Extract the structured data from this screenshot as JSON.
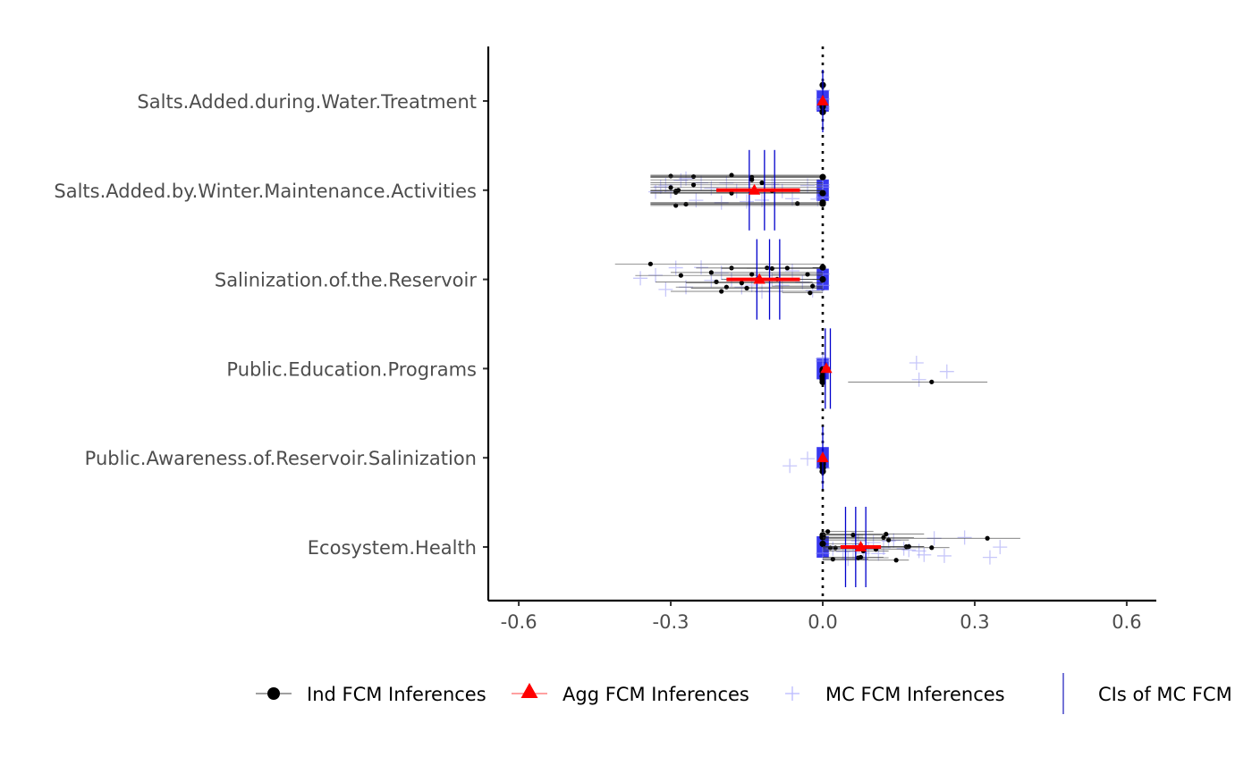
{
  "chart_data": {
    "type": "scatter",
    "title": "",
    "xlabel": "",
    "ylabel": "",
    "xlim": [
      -0.66,
      0.66
    ],
    "x_ticks": [
      -0.6,
      -0.3,
      0.0,
      0.3,
      0.6
    ],
    "x_tick_labels": [
      "-0.6",
      "-0.3",
      "0.0",
      "0.3",
      "0.6"
    ],
    "reference_line_x": 0.0,
    "grid": false,
    "legend_position": "bottom",
    "categories": [
      "Salts.Added.during.Water.Treatment",
      "Salts.Added.by.Winter.Maintenance.Activities",
      "Salinization.of.the.Reservoir",
      "Public.Education.Programs",
      "Public.Awareness.of.Reservoir.Salinization",
      "Ecosystem.Health"
    ],
    "legend": [
      {
        "label": "Ind FCM Inferences",
        "marker": "circle",
        "color": "#000000"
      },
      {
        "label": "Agg FCM Inferences",
        "marker": "triangle",
        "color": "#ff0000"
      },
      {
        "label": "MC FCM Inferences",
        "marker": "plus",
        "color": "#aaaaff"
      },
      {
        "label": "CIs of MC FCM",
        "marker": "vline",
        "color": "#2b2bbf"
      }
    ],
    "colors": {
      "ind": "#000000",
      "agg": "#ff0000",
      "mc": "#9a9af5",
      "ci": "#0000cc",
      "box": "#2323ee"
    },
    "series": [
      {
        "category": "Salts.Added.during.Water.Treatment",
        "ind": [
          [
            0.0,
            0.0,
            0.0
          ],
          [
            0.0,
            0.0,
            0.0
          ],
          [
            0.0,
            0.0,
            0.0
          ],
          [
            0.0,
            0.0,
            0.0
          ],
          [
            0.0,
            0.0,
            0.0
          ],
          [
            0.0,
            0.0,
            0.0
          ],
          [
            0.0,
            0.0,
            0.0
          ],
          [
            0.0,
            0.0,
            0.0
          ]
        ],
        "agg": {
          "value": 0.0,
          "low": -0.003,
          "high": 0.003
        },
        "mc": [
          0.0,
          0.0,
          0.0,
          0.0
        ],
        "ci": [
          0.0
        ],
        "box": [
          -0.012,
          0.012
        ]
      },
      {
        "category": "Salts.Added.by.Winter.Maintenance.Activities",
        "ind": [
          [
            -0.29,
            -0.34,
            0.0
          ],
          [
            -0.29,
            -0.34,
            0.0
          ],
          [
            -0.3,
            -0.34,
            0.0
          ],
          [
            -0.285,
            -0.34,
            0.0
          ],
          [
            -0.29,
            -0.34,
            0.0
          ],
          [
            -0.3,
            -0.34,
            0.0
          ],
          [
            -0.27,
            -0.34,
            0.0
          ],
          [
            -0.255,
            -0.34,
            0.0
          ],
          [
            -0.255,
            -0.34,
            0.0
          ],
          [
            -0.18,
            -0.34,
            0.0
          ],
          [
            -0.18,
            -0.34,
            0.0
          ],
          [
            -0.14,
            -0.34,
            0.0
          ],
          [
            -0.14,
            -0.34,
            0.0
          ],
          [
            -0.12,
            -0.34,
            0.0
          ],
          [
            -0.1,
            -0.34,
            0.0
          ],
          [
            -0.05,
            -0.34,
            0.0
          ],
          [
            -0.0,
            -0.34,
            0.0
          ],
          [
            -0.0,
            -0.34,
            0.0
          ],
          [
            -0.0,
            -0.34,
            0.0
          ],
          [
            -0.0,
            -0.34,
            0.0
          ]
        ],
        "agg": {
          "value": -0.135,
          "low": -0.21,
          "high": -0.045
        },
        "mc": [
          -0.33,
          -0.32,
          -0.31,
          -0.3,
          -0.28,
          -0.27,
          -0.25,
          -0.24,
          -0.22,
          -0.2,
          -0.19,
          -0.17,
          -0.15,
          -0.12,
          -0.1,
          -0.08,
          -0.06,
          -0.03,
          -0.01,
          0.0,
          0.0,
          0.0
        ],
        "ci": [
          -0.145,
          -0.115,
          -0.095
        ],
        "box": [
          -0.012,
          0.012
        ]
      },
      {
        "category": "Salinization.of.the.Reservoir",
        "ind": [
          [
            -0.34,
            -0.41,
            0.0
          ],
          [
            -0.28,
            -0.37,
            0.0
          ],
          [
            -0.22,
            -0.3,
            0.0
          ],
          [
            -0.21,
            -0.33,
            -0.02
          ],
          [
            -0.2,
            -0.3,
            0.0
          ],
          [
            -0.19,
            -0.29,
            0.0
          ],
          [
            -0.18,
            -0.25,
            0.0
          ],
          [
            -0.16,
            -0.27,
            0.0
          ],
          [
            -0.15,
            -0.26,
            0.0
          ],
          [
            -0.14,
            -0.22,
            0.0
          ],
          [
            -0.13,
            -0.2,
            0.0
          ],
          [
            -0.11,
            -0.2,
            0.0
          ],
          [
            -0.1,
            -0.2,
            0.0
          ],
          [
            -0.09,
            -0.18,
            0.0
          ],
          [
            -0.07,
            -0.15,
            0.0
          ],
          [
            -0.03,
            -0.1,
            0.0
          ],
          [
            -0.025,
            -0.08,
            0.0
          ],
          [
            -0.02,
            -0.1,
            0.0
          ],
          [
            0.0,
            -0.02,
            0.0
          ],
          [
            0.0,
            -0.02,
            0.0
          ]
        ],
        "agg": {
          "value": -0.125,
          "low": -0.19,
          "high": -0.045
        },
        "mc": [
          -0.36,
          -0.33,
          -0.31,
          -0.29,
          -0.27,
          -0.24,
          -0.22,
          -0.2,
          -0.18,
          -0.16,
          -0.14,
          -0.12,
          -0.1,
          -0.08,
          -0.06,
          -0.04,
          -0.02,
          0.0,
          0.0
        ],
        "ci": [
          -0.13,
          -0.105,
          -0.085
        ],
        "box": [
          -0.012,
          0.012
        ]
      },
      {
        "category": "Public.Education.Programs",
        "ind": [
          [
            0.0,
            0.0,
            0.0
          ],
          [
            0.0,
            0.0,
            0.0
          ],
          [
            0.0,
            0.0,
            0.0
          ],
          [
            0.0,
            0.0,
            0.0
          ],
          [
            0.0,
            0.0,
            0.0
          ],
          [
            0.0,
            0.0,
            0.0
          ],
          [
            0.215,
            0.05,
            0.325
          ]
        ],
        "agg": {
          "value": 0.007,
          "low": 0.0,
          "high": 0.014
        },
        "mc": [
          0.185,
          0.19,
          0.245,
          0.0,
          0.0
        ],
        "ci": [
          0.005,
          0.015
        ],
        "box": [
          -0.012,
          0.012
        ]
      },
      {
        "category": "Public.Awareness.of.Reservoir.Salinization",
        "ind": [
          [
            0.0,
            0.0,
            0.0
          ],
          [
            0.0,
            0.0,
            0.0
          ],
          [
            0.0,
            0.0,
            0.0
          ],
          [
            0.0,
            0.0,
            0.0
          ],
          [
            0.0,
            0.0,
            0.0
          ],
          [
            0.0,
            0.0,
            0.0
          ]
        ],
        "agg": {
          "value": 0.0,
          "low": -0.003,
          "high": 0.003
        },
        "mc": [
          -0.065,
          -0.03,
          0.0
        ],
        "ci": [
          0.0
        ],
        "box": [
          -0.012,
          0.012
        ]
      },
      {
        "category": "Ecosystem.Health",
        "ind": [
          [
            0.0,
            0.0,
            0.08
          ],
          [
            0.0,
            0.0,
            0.08
          ],
          [
            0.0,
            0.0,
            0.08
          ],
          [
            0.01,
            0.0,
            0.1
          ],
          [
            0.015,
            0.0,
            0.09
          ],
          [
            0.02,
            0.0,
            0.09
          ],
          [
            0.025,
            0.0,
            0.08
          ],
          [
            0.06,
            0.0,
            0.12
          ],
          [
            0.07,
            0.0,
            0.13
          ],
          [
            0.075,
            0.0,
            0.12
          ],
          [
            0.08,
            0.0,
            0.13
          ],
          [
            0.105,
            0.0,
            0.17
          ],
          [
            0.12,
            0.0,
            0.18
          ],
          [
            0.125,
            0.0,
            0.2
          ],
          [
            0.13,
            0.0,
            0.17
          ],
          [
            0.145,
            0.0,
            0.17
          ],
          [
            0.165,
            0.0,
            0.2
          ],
          [
            0.17,
            0.0,
            0.2
          ],
          [
            0.215,
            0.0,
            0.25
          ],
          [
            0.325,
            0.0,
            0.39
          ]
        ],
        "agg": {
          "value": 0.075,
          "low": 0.035,
          "high": 0.115
        },
        "mc": [
          0.0,
          0.02,
          0.04,
          0.05,
          0.06,
          0.07,
          0.08,
          0.09,
          0.1,
          0.11,
          0.12,
          0.13,
          0.14,
          0.16,
          0.17,
          0.19,
          0.2,
          0.22,
          0.24,
          0.28,
          0.33,
          0.35
        ],
        "ci": [
          0.045,
          0.065,
          0.085
        ],
        "box": [
          -0.012,
          0.012
        ]
      }
    ]
  }
}
